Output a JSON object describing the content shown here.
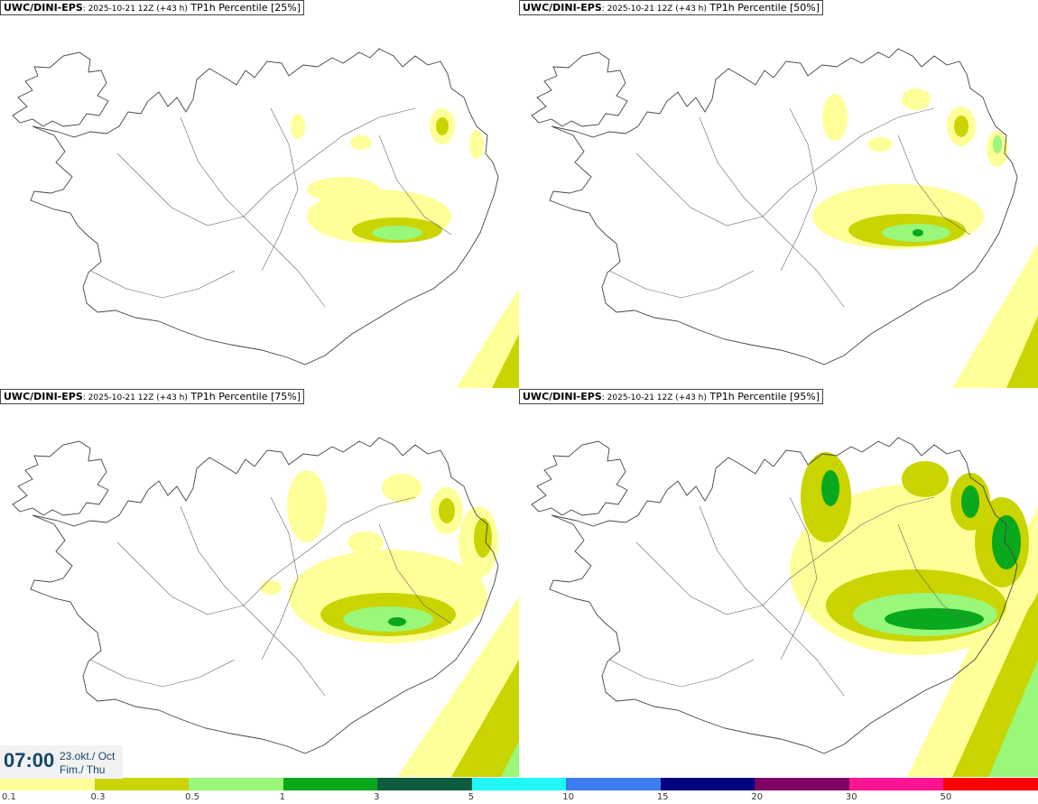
{
  "panels": [
    {
      "model": "UWC/DINI-EPS",
      "sub": ": 2025-10-21 12Z (+43 h)",
      "field": " TP1h Percentile [25%]"
    },
    {
      "model": "UWC/DINI-EPS",
      "sub": ": 2025-10-21 12Z (+43 h)",
      "field": " TP1h Percentile [50%]"
    },
    {
      "model": "UWC/DINI-EPS",
      "sub": ": 2025-10-21 12Z (+43 h)",
      "field": " TP1h Percentile [75%]"
    },
    {
      "model": "UWC/DINI-EPS",
      "sub": ": 2025-10-21 12Z (+43 h)",
      "field": " TP1h Percentile [95%]"
    }
  ],
  "valid_time": {
    "time": "07:00",
    "date": "23.okt./ Oct",
    "day": "Fim./ Thu"
  },
  "legend": {
    "colors": [
      "#ffff99",
      "#c9d400",
      "#99f77a",
      "#0aa81c",
      "#0d5c3e",
      "#20f7f7",
      "#3d7bf0",
      "#000080",
      "#800066",
      "#ff1493",
      "#ff0000"
    ],
    "labels": [
      "0.1",
      "0.3",
      "0.5",
      "1",
      "3",
      "5",
      "10",
      "15",
      "20",
      "30",
      "50"
    ]
  }
}
